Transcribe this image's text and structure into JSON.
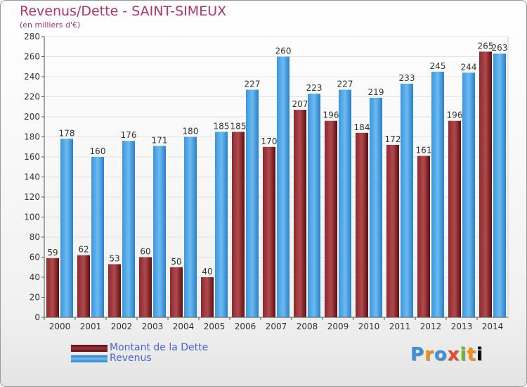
{
  "chart_data": {
    "type": "bar",
    "title": "Revenus/Dette - SAINT-SIMEUX",
    "subtitle": "(en milliers d'€)",
    "categories": [
      "2000",
      "2001",
      "2002",
      "2003",
      "2004",
      "2005",
      "2006",
      "2007",
      "2008",
      "2009",
      "2010",
      "2011",
      "2012",
      "2013",
      "2014"
    ],
    "series": [
      {
        "name": "Montant de la Dette",
        "color": "#7a1e22",
        "values": [
          59,
          62,
          53,
          60,
          50,
          40,
          185,
          170,
          207,
          196,
          184,
          172,
          161,
          196,
          265
        ]
      },
      {
        "name": "Revenus",
        "color": "#4aa3e6",
        "values": [
          178,
          160,
          176,
          171,
          180,
          185,
          227,
          260,
          223,
          227,
          219,
          233,
          245,
          244,
          263
        ]
      }
    ],
    "ylim": [
      0,
      280
    ],
    "yticks": [
      0,
      20,
      40,
      60,
      80,
      100,
      120,
      140,
      160,
      180,
      200,
      220,
      240,
      260,
      280
    ],
    "grid": true,
    "legend_position": "bottom-left"
  },
  "logo": {
    "letters": [
      "P",
      "r",
      "o",
      "x",
      "i",
      "t",
      "i"
    ]
  }
}
